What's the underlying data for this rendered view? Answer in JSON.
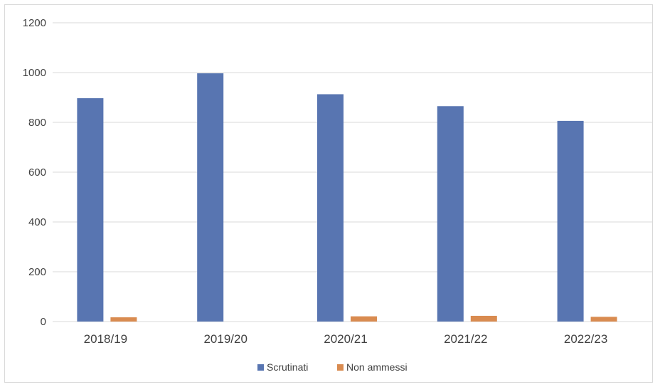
{
  "chart_data": {
    "type": "bar",
    "title": "",
    "xlabel": "",
    "ylabel": "",
    "categories": [
      "2018/19",
      "2019/20",
      "2020/21",
      "2021/22",
      "2022/23"
    ],
    "series": [
      {
        "name": "Scrutinati",
        "values": [
          897,
          997,
          913,
          865,
          806
        ],
        "color": "#5875b1"
      },
      {
        "name": "Non ammessi",
        "values": [
          17,
          0,
          21,
          23,
          19
        ],
        "color": "#d98b50"
      }
    ],
    "ylim": [
      0,
      1200
    ],
    "yticks": [
      "0",
      "200",
      "400",
      "600",
      "800",
      "1000",
      "1200"
    ],
    "grid": true,
    "legend_position": "bottom"
  }
}
